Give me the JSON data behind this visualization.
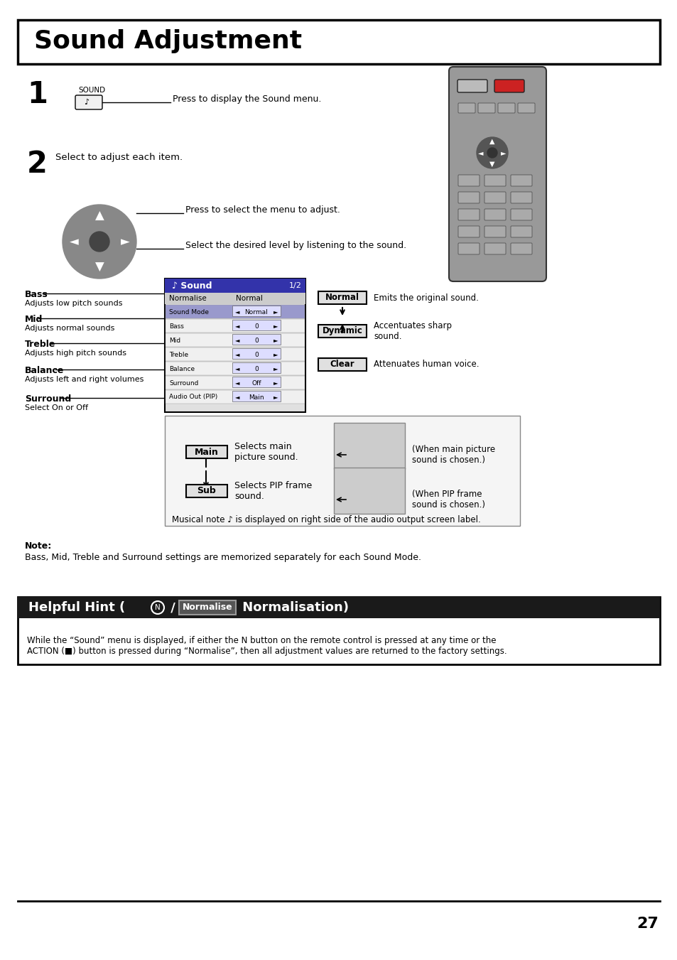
{
  "title": "Sound Adjustment",
  "page_number": "27",
  "bg_color": "#ffffff",
  "border_color": "#000000",
  "step1_label": "1",
  "step1_sound_label": "SOUND",
  "step1_text": "Press to display the Sound menu.",
  "step2_label": "2",
  "step2_text": "Select to adjust each item.",
  "step2_subtext1": "Press to select the menu to adjust.",
  "step2_subtext2": "Select the desired level by listening to the sound.",
  "left_labels": [
    [
      "Bass",
      "Adjusts low pitch sounds"
    ],
    [
      "Mid",
      "Adjusts normal sounds"
    ],
    [
      "Treble",
      "Adjusts high pitch sounds"
    ],
    [
      "Balance",
      "Adjusts left and right volumes"
    ],
    [
      "Surround",
      "Select On or Off"
    ]
  ],
  "menu_title": "Sound",
  "menu_page": "1/2",
  "menu_items": [
    [
      "Normalise",
      "Normal"
    ],
    [
      "Sound Mode",
      "Normal"
    ],
    [
      "Bass",
      "0"
    ],
    [
      "Mid",
      "0"
    ],
    [
      "Treble",
      "0"
    ],
    [
      "Balance",
      "0"
    ],
    [
      "Surround",
      "Off"
    ],
    [
      "Audio Out (PIP)",
      "Main"
    ]
  ],
  "normal_box_text": "Normal",
  "normal_desc": "Emits the original sound.",
  "dynamic_box_text": "Dynamic",
  "dynamic_desc": "Accentuates sharp\nsound.",
  "clear_box_text": "Clear",
  "clear_desc": "Attenuates human voice.",
  "main_box_text": "Main",
  "main_desc": "Selects main\npicture sound.",
  "sub_box_text": "Sub",
  "sub_desc": "Selects PIP frame\nsound.",
  "main_when_text": "(When main picture\nsound is chosen.)",
  "sub_when_text": "(When PIP frame\nsound is chosen.)",
  "musical_note_text": "Musical note ♪ is displayed on right side of the audio output screen label.",
  "note_label": "Note:",
  "note_text": "Bass, Mid, Treble and Surround settings are memorized separately for each Sound Mode.",
  "helpful_hint_normalise": "Normalise",
  "helpful_hint_body": "While the “Sound” menu is displayed, if either the N button on the remote control is pressed at any time or the\nACTION (■) button is pressed during “Normalise”, then all adjustment values are returned to the factory settings."
}
